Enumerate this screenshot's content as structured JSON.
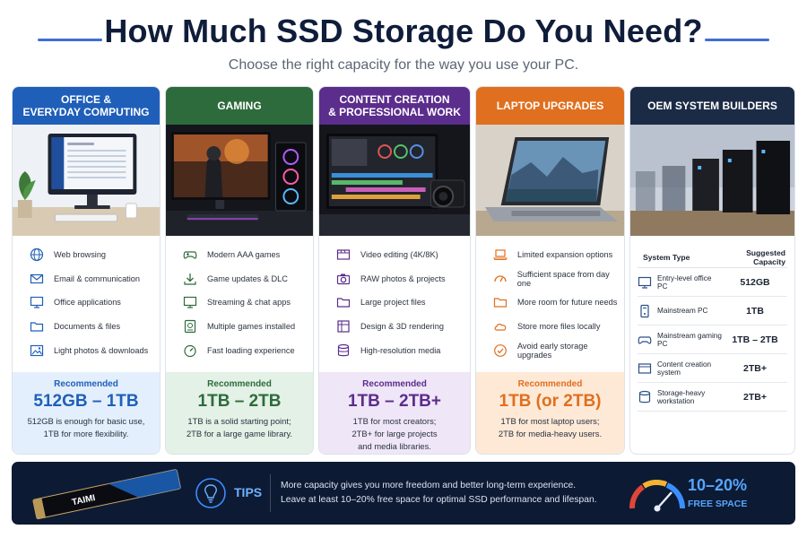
{
  "header": {
    "title": "How Much SSD Storage Do You Need?",
    "subtitle": "Choose the right capacity for the way you use your PC."
  },
  "colors": {
    "office": "#1f5fb9",
    "gaming": "#2e6b3c",
    "creation": "#5b2d8c",
    "laptop": "#e06f1f",
    "oem": "#1c2b45"
  },
  "cards": [
    {
      "title_line1": "OFFICE &",
      "title_line2": "EVERYDAY COMPUTING",
      "features": [
        {
          "icon": "globe-icon",
          "label": "Web browsing"
        },
        {
          "icon": "envelope-icon",
          "label": "Email & communication"
        },
        {
          "icon": "monitor-icon",
          "label": "Office applications"
        },
        {
          "icon": "folder-icon",
          "label": "Documents & files"
        },
        {
          "icon": "image-icon",
          "label": "Light photos & downloads"
        }
      ],
      "rec_label": "Recommended",
      "rec_value": "512GB – 1TB",
      "rec_desc_1": "512GB is enough for basic use,",
      "rec_desc_2": "1TB for more flexibility."
    },
    {
      "title_line1": "GAMING",
      "features": [
        {
          "icon": "gamepad-icon",
          "label": "Modern AAA games"
        },
        {
          "icon": "download-icon",
          "label": "Game updates & DLC"
        },
        {
          "icon": "monitor-icon",
          "label": "Streaming & chat apps"
        },
        {
          "icon": "stack-icon",
          "label": "Multiple games installed"
        },
        {
          "icon": "speedometer-icon",
          "label": "Fast loading experience"
        }
      ],
      "rec_label": "Recommended",
      "rec_value": "1TB – 2TB",
      "rec_desc_1": "1TB is a solid starting point;",
      "rec_desc_2": "2TB for a large game library."
    },
    {
      "title_line1": "CONTENT CREATION",
      "title_line2": "& PROFESSIONAL WORK",
      "features": [
        {
          "icon": "film-icon",
          "label": "Video editing (4K/8K)"
        },
        {
          "icon": "camera-icon",
          "label": "RAW photos & projects"
        },
        {
          "icon": "folder-icon",
          "label": "Large project files"
        },
        {
          "icon": "cube-icon",
          "label": "Design & 3D rendering"
        },
        {
          "icon": "database-icon",
          "label": "High-resolution media"
        }
      ],
      "rec_label": "Recommended",
      "rec_value": "1TB – 2TB+",
      "rec_desc_1": "1TB for most creators;",
      "rec_desc_2": "2TB+ for large projects",
      "rec_desc_3": "and media libraries."
    },
    {
      "title_line1": "LAPTOP UPGRADES",
      "features": [
        {
          "icon": "laptop-icon",
          "label": "Limited expansion options"
        },
        {
          "icon": "gauge-icon",
          "label": "Sufficient space from day one"
        },
        {
          "icon": "folder-icon",
          "label": "More room for future needs"
        },
        {
          "icon": "cloud-icon",
          "label": "Store more files locally"
        },
        {
          "icon": "check-circle-icon",
          "label": "Avoid early storage upgrades"
        }
      ],
      "rec_label": "Recommended",
      "rec_value": "1TB (or 2TB)",
      "rec_desc_1": "1TB for most laptop users;",
      "rec_desc_2": "2TB for media-heavy users."
    }
  ],
  "oem": {
    "title": "OEM SYSTEM BUILDERS",
    "col1": "System Type",
    "col2": "Suggested Capacity",
    "rows": [
      {
        "icon": "desktop-icon",
        "type": "Entry-level office PC",
        "capacity": "512GB"
      },
      {
        "icon": "tower-icon",
        "type": "Mainstream PC",
        "capacity": "1TB"
      },
      {
        "icon": "gamepad-icon",
        "type": "Mainstream gaming PC",
        "capacity": "1TB – 2TB"
      },
      {
        "icon": "film-icon",
        "type": "Content creation system",
        "capacity": "2TB+"
      },
      {
        "icon": "database-icon",
        "type": "Storage-heavy workstation",
        "capacity": "2TB+"
      }
    ]
  },
  "tips": {
    "brand": "TAIMI",
    "label": "TIPS",
    "line1": "More capacity gives you more freedom and better long-term experience.",
    "line2": "Leave at least 10–20% free space for optimal SSD performance and lifespan.",
    "percent": "10–20%",
    "percent_label": "FREE SPACE"
  }
}
